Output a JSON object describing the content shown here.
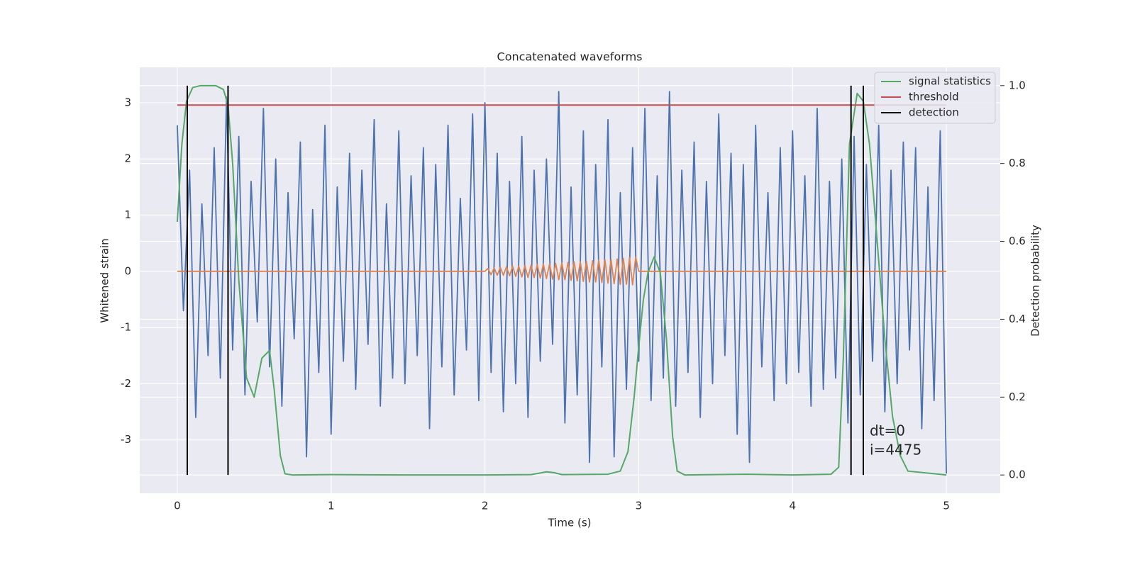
{
  "chart_data": {
    "type": "line",
    "title": "Concatenated waveforms",
    "x_label": "Time (s)",
    "y_label": "Whitened strain",
    "y2_label": "Detection probability",
    "xlim": [
      -0.244,
      5.35
    ],
    "ylim": [
      -3.95,
      3.63
    ],
    "y2lim": [
      -0.047,
      1.047
    ],
    "xticks": [
      0,
      1,
      2,
      3,
      4,
      5
    ],
    "yticks": [
      -3,
      -2,
      -1,
      0,
      1,
      2,
      3
    ],
    "y2ticks": [
      {
        "value": 0,
        "label": "0.0"
      },
      0.2,
      0.4,
      0.6,
      0.8,
      {
        "value": 1,
        "label": "1.0"
      }
    ],
    "grid": true,
    "legend": "upper right",
    "annotations": [
      "dt=0",
      "i=4475"
    ],
    "series": [
      {
        "color": "#4c72b0",
        "x": [
          0,
          0.04,
          0.08,
          0.12,
          0.16,
          0.2,
          0.24,
          0.28,
          0.32,
          0.36,
          0.4,
          0.44,
          0.48,
          0.52,
          0.56,
          0.6,
          0.64,
          0.68,
          0.72,
          0.76,
          0.8,
          0.84,
          0.88,
          0.92,
          0.96,
          1,
          1.04,
          1.08,
          1.12,
          1.16,
          1.2,
          1.24,
          1.28,
          1.32,
          1.36,
          1.4,
          1.44,
          1.48,
          1.52,
          1.56,
          1.6,
          1.64,
          1.68,
          1.72,
          1.76,
          1.8,
          1.84,
          1.88,
          1.92,
          1.96,
          2,
          2.04,
          2.08,
          2.12,
          2.16,
          2.2,
          2.24,
          2.28,
          2.32,
          2.36,
          2.4,
          2.44,
          2.48,
          2.52,
          2.56,
          2.6,
          2.64,
          2.68,
          2.72,
          2.76,
          2.8,
          2.84,
          2.88,
          2.92,
          2.96,
          3,
          3.04,
          3.08,
          3.12,
          3.16,
          3.2,
          3.24,
          3.28,
          3.32,
          3.36,
          3.4,
          3.44,
          3.48,
          3.52,
          3.56,
          3.6,
          3.64,
          3.68,
          3.72,
          3.76,
          3.8,
          3.84,
          3.88,
          3.92,
          3.96,
          4,
          4.04,
          4.08,
          4.12,
          4.16,
          4.2,
          4.24,
          4.28,
          4.32,
          4.36,
          4.4,
          4.44,
          4.48,
          4.52,
          4.56,
          4.6,
          4.64,
          4.68,
          4.72,
          4.76,
          4.8,
          4.84,
          4.88,
          4.92,
          4.96,
          5
        ],
        "values": [
          2.6,
          -0.7,
          1.8,
          -2.6,
          1.2,
          -1.5,
          2.2,
          -1.9,
          3.1,
          -1.4,
          2.4,
          -2.2,
          1.6,
          -0.9,
          2.9,
          -1.7,
          2.0,
          -2.4,
          1.4,
          -1.2,
          2.3,
          -3.3,
          1.1,
          -1.8,
          2.6,
          -2.9,
          1.5,
          -1.6,
          2.1,
          -2.1,
          1.8,
          -1.3,
          2.7,
          -2.4,
          1.2,
          -1.9,
          2.5,
          -2.0,
          1.7,
          -1.5,
          2.2,
          -2.8,
          1.9,
          -1.7,
          2.6,
          -2.2,
          1.3,
          -1.4,
          2.8,
          -2.3,
          3.0,
          -1.8,
          2.1,
          -2.5,
          1.6,
          -2.0,
          2.4,
          -2.6,
          1.8,
          -1.6,
          2.0,
          -1.3,
          3.2,
          -2.7,
          1.5,
          -2.2,
          2.5,
          -3.4,
          1.9,
          -1.7,
          2.7,
          -3.3,
          1.4,
          -2.1,
          2.2,
          -1.6,
          2.9,
          -2.3,
          1.7,
          -1.9,
          3.2,
          -2.4,
          1.8,
          -1.8,
          2.3,
          -2.6,
          1.6,
          -2.0,
          2.8,
          -1.5,
          2.1,
          -2.9,
          1.9,
          -3.4,
          2.6,
          -1.7,
          1.4,
          -2.3,
          2.2,
          -2.0,
          2.5,
          -1.8,
          1.7,
          -2.4,
          2.9,
          -2.1,
          1.6,
          -1.9,
          2.0,
          -2.7,
          2.4,
          -2.2,
          1.9,
          -1.6,
          2.6,
          -2.5,
          1.8,
          -2.0,
          2.3,
          -1.4,
          2.2,
          -2.8,
          1.5,
          -2.3,
          2.5,
          -3.6
        ]
      },
      {
        "color": "#dd8452",
        "x": [
          0,
          2,
          2.02,
          2.04,
          2.06,
          2.08,
          2.1,
          2.12,
          2.14,
          2.16,
          2.18,
          2.2,
          2.22,
          2.24,
          2.26,
          2.28,
          2.3,
          2.32,
          2.34,
          2.36,
          2.38,
          2.4,
          2.42,
          2.44,
          2.46,
          2.48,
          2.5,
          2.52,
          2.54,
          2.56,
          2.58,
          2.6,
          2.62,
          2.64,
          2.66,
          2.68,
          2.7,
          2.72,
          2.74,
          2.76,
          2.78,
          2.8,
          2.82,
          2.84,
          2.86,
          2.88,
          2.9,
          2.92,
          2.94,
          2.96,
          2.98,
          3,
          5
        ],
        "values": [
          0,
          0,
          0.05,
          -0.06,
          0.06,
          -0.07,
          0.07,
          -0.07,
          0.08,
          -0.08,
          0.09,
          -0.09,
          0.09,
          -0.1,
          0.1,
          -0.11,
          0.11,
          -0.11,
          0.12,
          -0.12,
          0.13,
          -0.13,
          0.13,
          -0.14,
          0.14,
          -0.15,
          0.15,
          -0.15,
          0.16,
          -0.16,
          0.17,
          -0.17,
          0.17,
          -0.18,
          0.18,
          -0.19,
          0.19,
          -0.19,
          0.2,
          -0.2,
          0.21,
          -0.21,
          0.21,
          -0.22,
          0.22,
          -0.23,
          0.23,
          -0.23,
          0.24,
          -0.24,
          0.25,
          0,
          0
        ]
      },
      {
        "name": "signal statistics",
        "color": "#55a868",
        "axis": "y2",
        "x": [
          0,
          0.03,
          0.06,
          0.1,
          0.15,
          0.2,
          0.25,
          0.3,
          0.33,
          0.36,
          0.4,
          0.45,
          0.5,
          0.55,
          0.6,
          0.63,
          0.67,
          0.7,
          0.75,
          1,
          1.5,
          2,
          2.3,
          2.4,
          2.45,
          2.5,
          2.8,
          2.88,
          2.93,
          2.97,
          3,
          3.03,
          3.06,
          3.1,
          3.14,
          3.18,
          3.22,
          3.25,
          3.3,
          3.7,
          4,
          4.25,
          4.3,
          4.33,
          4.37,
          4.42,
          4.46,
          4.5,
          4.55,
          4.6,
          4.65,
          4.7,
          4.75,
          5
        ],
        "values": [
          0.65,
          0.85,
          0.96,
          0.995,
          1,
          1,
          1,
          0.99,
          0.95,
          0.8,
          0.5,
          0.25,
          0.2,
          0.3,
          0.32,
          0.22,
          0.05,
          0.003,
          0,
          0.001,
          0,
          0,
          0.001,
          0.008,
          0.006,
          0.001,
          0.002,
          0.01,
          0.06,
          0.2,
          0.33,
          0.45,
          0.52,
          0.56,
          0.52,
          0.35,
          0.1,
          0.01,
          0,
          0.002,
          0,
          0.002,
          0.02,
          0.3,
          0.85,
          0.98,
          0.96,
          0.85,
          0.6,
          0.35,
          0.15,
          0.05,
          0.01,
          0
        ]
      },
      {
        "name": "threshold",
        "color": "#c44e52",
        "axis": "y2",
        "x": [
          0,
          5
        ],
        "values": [
          0.95,
          0.95
        ]
      },
      {
        "name": "detection",
        "color": "#000000",
        "axis": "y2",
        "style": "vlines",
        "x": [
          0.065,
          0.33,
          4.38,
          4.46
        ],
        "values": [
          1,
          1,
          1,
          1
        ]
      }
    ]
  }
}
